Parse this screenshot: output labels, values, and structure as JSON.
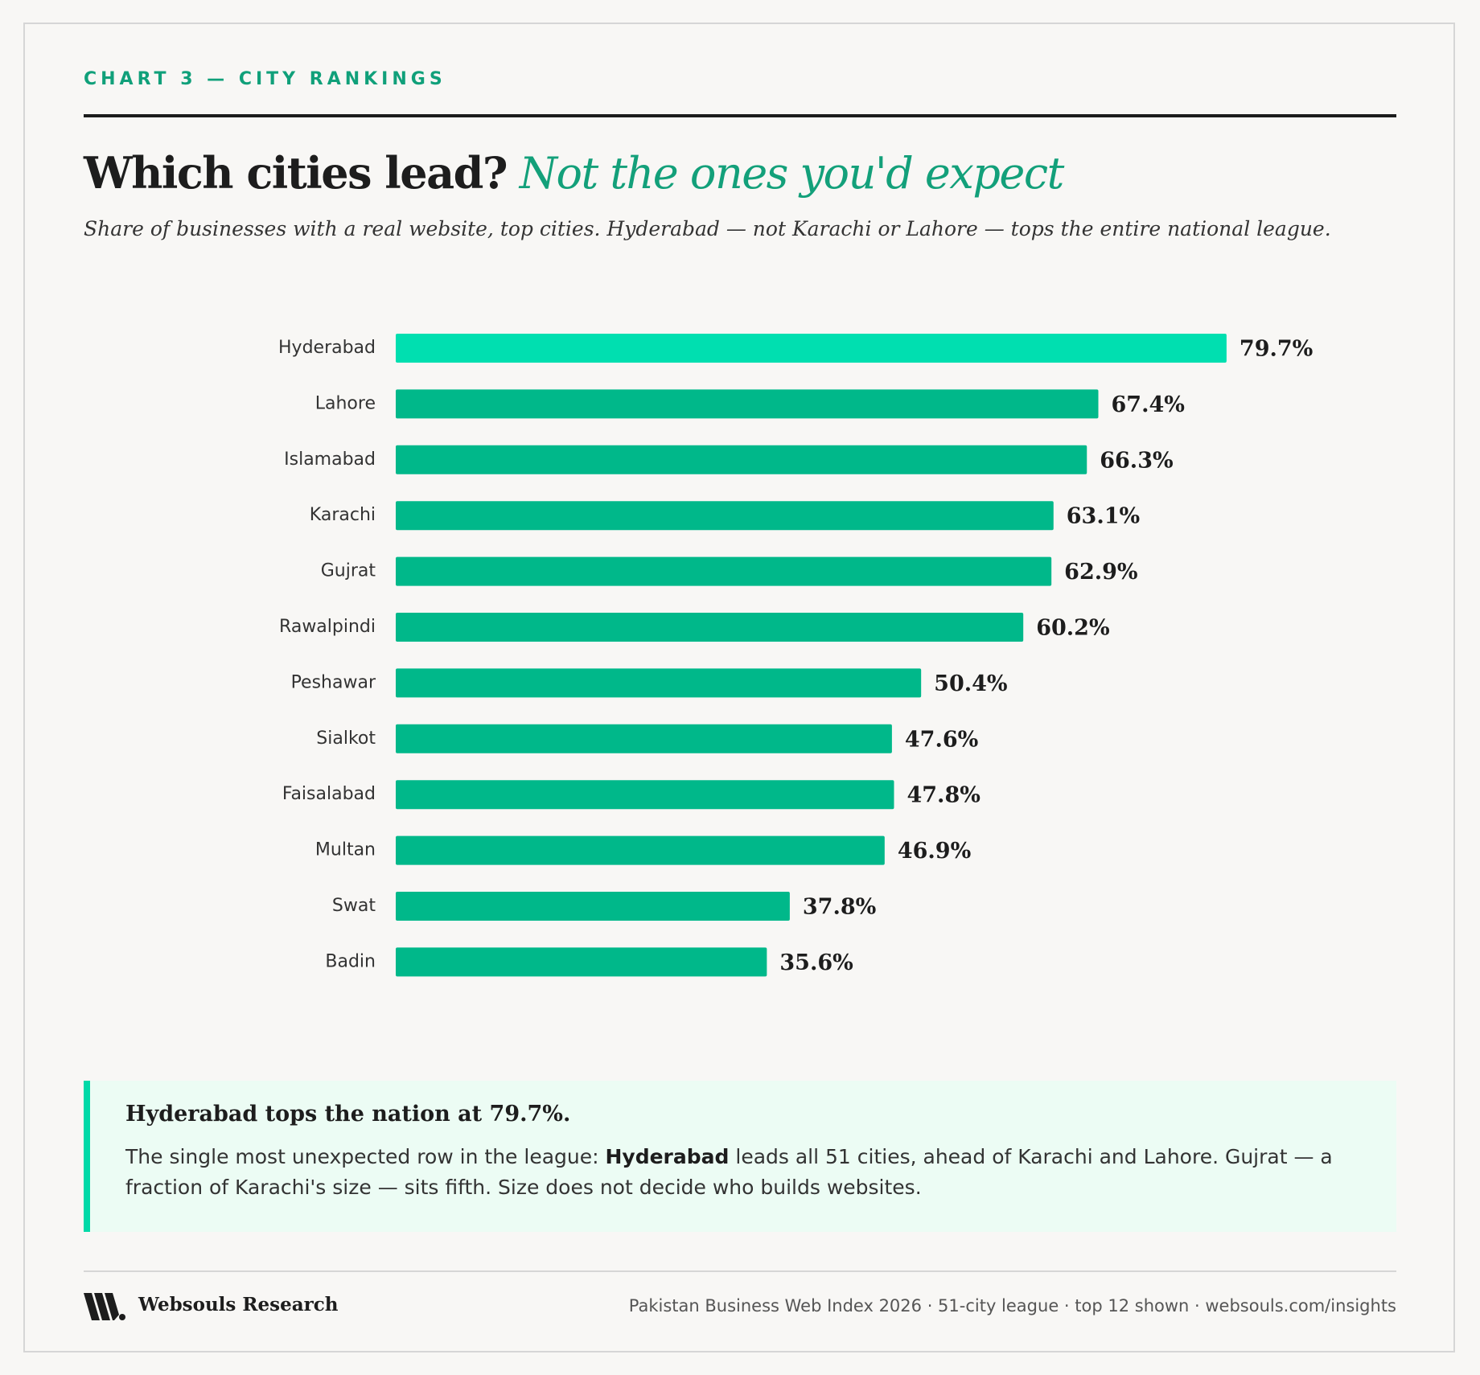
{
  "header": {
    "eyebrow": "CHART 3 — CITY RANKINGS",
    "title_main": "Which cities lead?",
    "title_accent": "Not the ones you'd expect",
    "subtitle": "Share of businesses with a real website, top cities. Hyderabad — not Karachi or Lahore — tops the entire national league."
  },
  "chart_data": {
    "type": "bar",
    "orientation": "horizontal",
    "categories": [
      "Hyderabad",
      "Lahore",
      "Islamabad",
      "Karachi",
      "Gujrat",
      "Rawalpindi",
      "Peshawar",
      "Sialkot",
      "Faisalabad",
      "Multan",
      "Swat",
      "Badin"
    ],
    "values": [
      79.7,
      67.4,
      66.3,
      63.1,
      62.9,
      60.2,
      50.4,
      47.6,
      47.8,
      46.9,
      37.8,
      35.6
    ],
    "value_labels": [
      "79.7%",
      "67.4%",
      "66.3%",
      "63.1%",
      "62.9%",
      "60.2%",
      "50.4%",
      "47.6%",
      "47.8%",
      "46.9%",
      "37.8%",
      "35.6%"
    ],
    "unit": "%",
    "highlight_index": 0,
    "xlim": [
      0,
      100
    ],
    "grid": false,
    "colors": {
      "bar": "#00b88a",
      "highlight": "#00dfb0",
      "label": "#1d1d1d"
    }
  },
  "callout": {
    "title": "Hyderabad tops the nation at 79.7%.",
    "body_pre": "The single most unexpected row in the league: ",
    "body_bold": "Hyderabad",
    "body_post": " leads all 51 cities, ahead of Karachi and Lahore. Gujrat — a fraction of Karachi's size — sits fifth. Size does not decide who builds websites."
  },
  "footer": {
    "logo_icon": "websouls-logo-icon",
    "brand": "Websouls Research",
    "source": "Pakistan Business Web Index 2026 · 51-city league · top 12 shown · websouls.com/insights"
  }
}
